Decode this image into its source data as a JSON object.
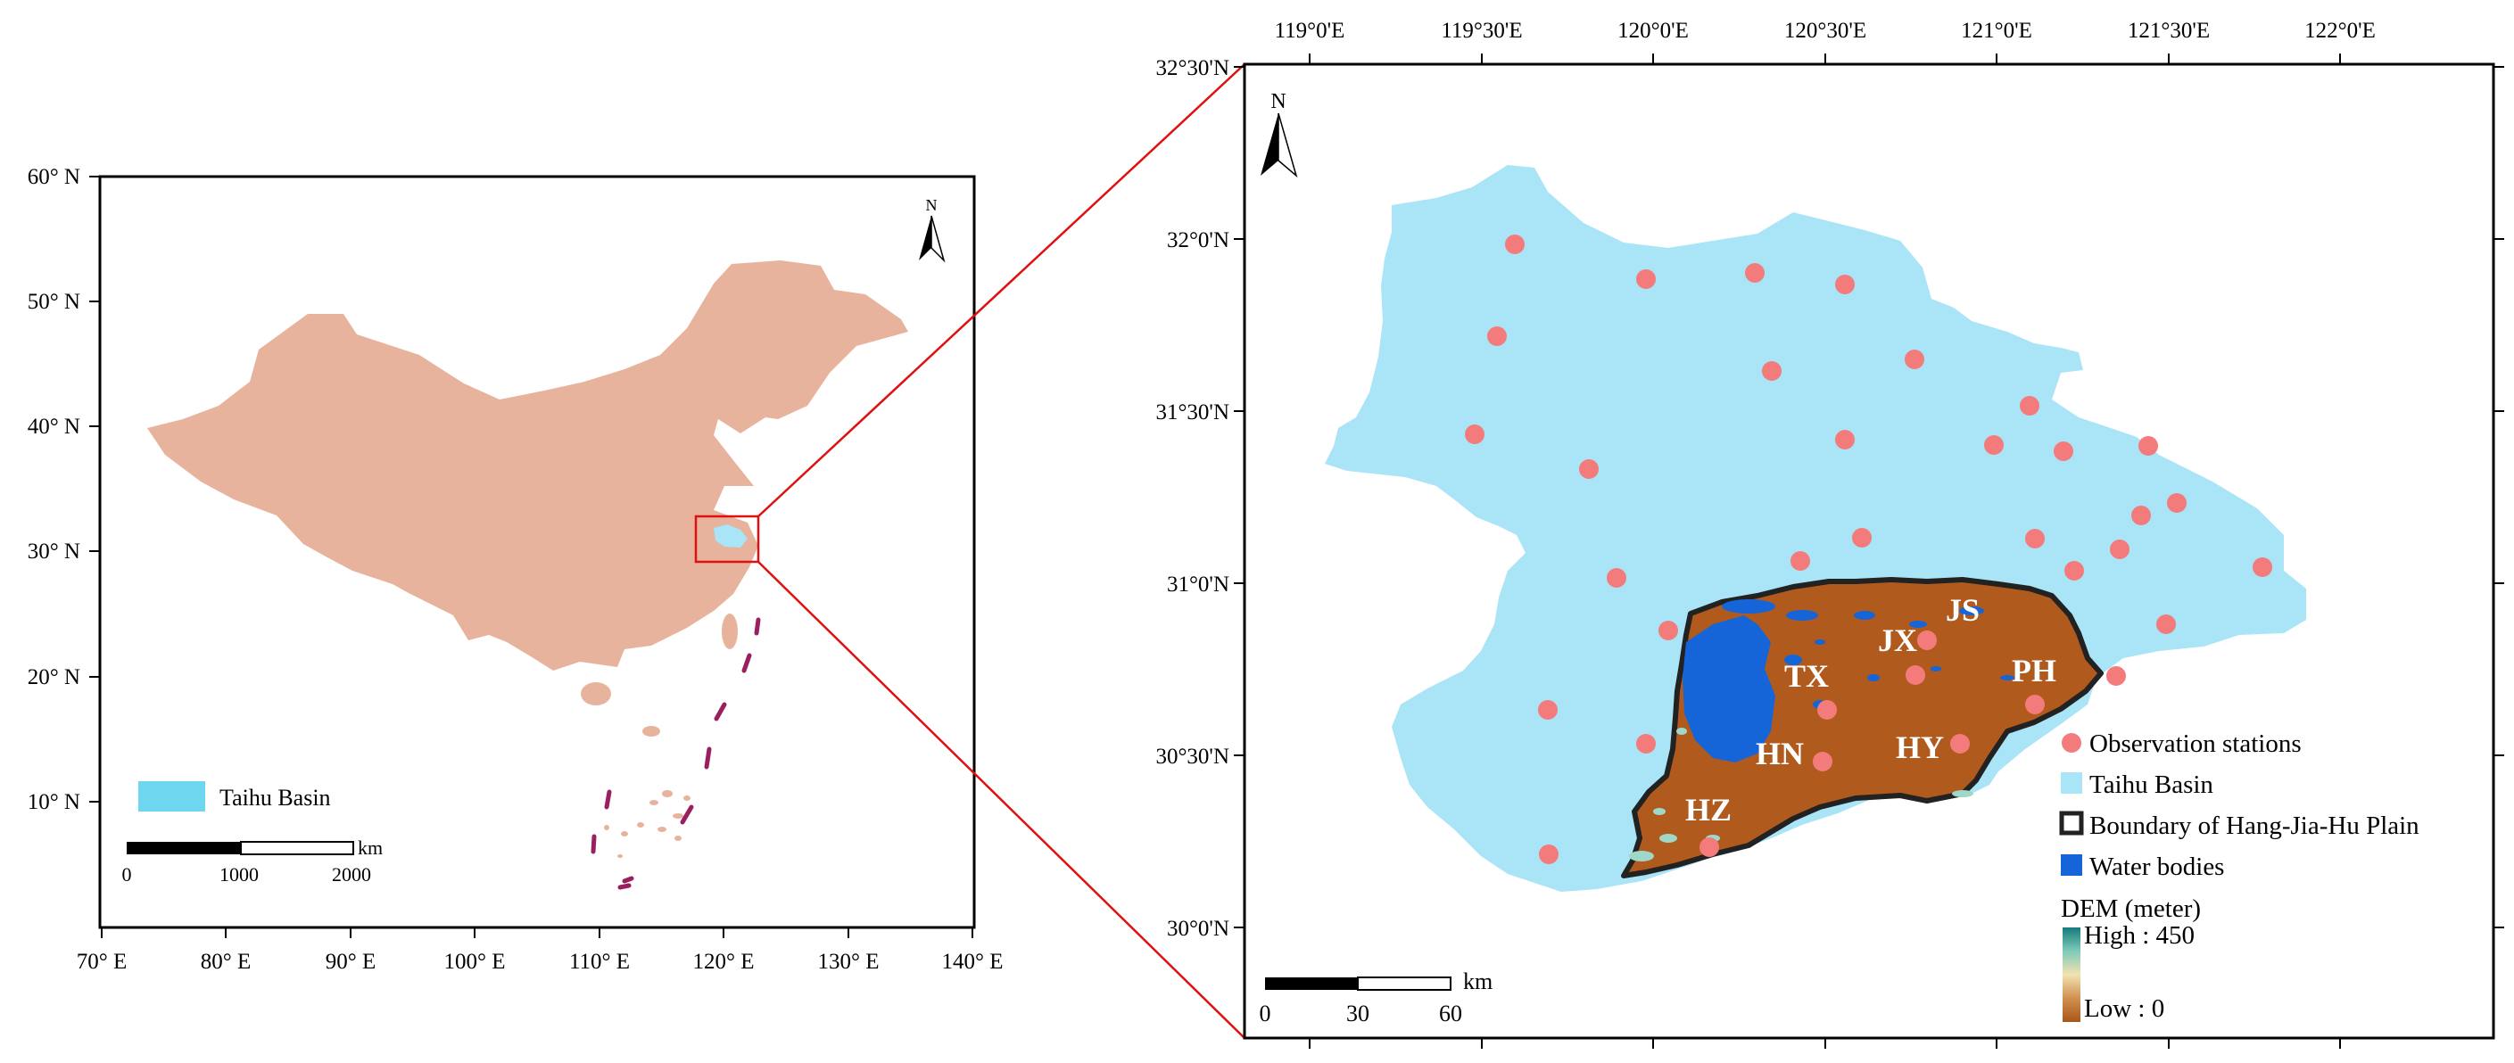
{
  "left_map": {
    "lat_ticks": [
      "60° N",
      "50° N",
      "40° N",
      "30° N",
      "20° N",
      "10° N"
    ],
    "lon_ticks": [
      "70° E",
      "80° E",
      "90° E",
      "100° E",
      "110° E",
      "120° E",
      "130° E",
      "140° E"
    ],
    "north_label": "N",
    "legend": {
      "label": "Taihu Basin"
    },
    "scalebar": {
      "unit": "km",
      "labels": [
        "0",
        "1000",
        "2000"
      ]
    }
  },
  "right_map": {
    "lon_ticks": [
      "119°0'E",
      "119°30'E",
      "120°0'E",
      "120°30'E",
      "121°0'E",
      "121°30'E",
      "122°0'E"
    ],
    "lat_ticks": [
      "32°30'N",
      "32°0'N",
      "31°30'N",
      "31°0'N",
      "30°30'N",
      "30°0'N"
    ],
    "north_label": "N",
    "region_labels": [
      "JS",
      "JX",
      "TX",
      "PH",
      "HN",
      "HY",
      "HZ"
    ],
    "legend": {
      "items": [
        "Observation stations",
        "Taihu Basin",
        "Boundary of Hang-Jia-Hu Plain",
        "Water bodies"
      ],
      "dem_title": "DEM (meter)",
      "dem_high": "High : 450",
      "dem_low": "Low : 0"
    },
    "scalebar": {
      "unit": "km",
      "labels": [
        "0",
        "30",
        "60"
      ]
    }
  },
  "colors": {
    "china": "#e7b39d",
    "taihu_basin": "#a9e4f7",
    "station": "#f47b7b",
    "water": "#1565d8",
    "dem": "#b05a1e",
    "zoom_line": "#e01010",
    "islands_line": "#9a1f5e"
  }
}
